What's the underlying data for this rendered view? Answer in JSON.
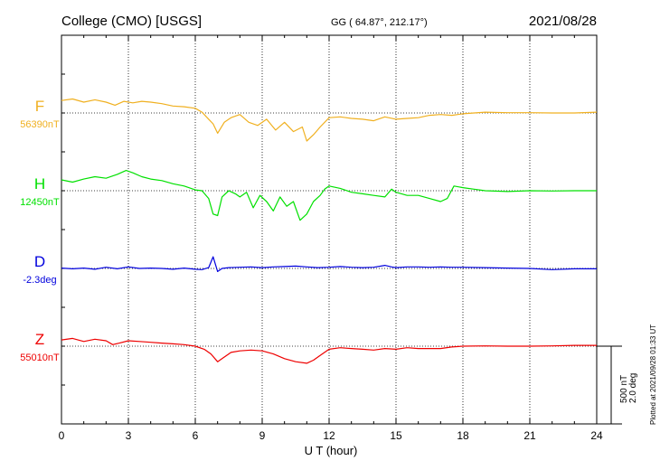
{
  "header": {
    "title": "College (CMO)  [USGS]",
    "coords": "GG ( 64.87°, 212.17°)",
    "date": "2021/08/28"
  },
  "footer": {
    "plotted": "Plotted at 2021/09/28 01:33 UT",
    "scale_nt": "500 nT",
    "scale_deg": "2.0 deg"
  },
  "colors": {
    "F": "#f0b020",
    "H": "#00e000",
    "D": "#0000dd",
    "Z": "#ee0000"
  },
  "chart_data": {
    "type": "line",
    "title": "College (CMO)  [USGS]",
    "xlabel": "U T (hour)",
    "xlim": [
      0,
      24
    ],
    "xticks": [
      0,
      3,
      6,
      9,
      12,
      15,
      18,
      21,
      24
    ],
    "grid": true,
    "scale_bar": {
      "label_top": "500 nT",
      "label_bottom": "2.0 deg",
      "value_nt": 500,
      "value_deg": 2.0
    },
    "series": [
      {
        "name": "F",
        "baseline_label": "56390nT",
        "baseline": 56390,
        "unit": "nT",
        "x": [
          0,
          0.5,
          1,
          1.5,
          2,
          2.4,
          2.8,
          3.2,
          3.6,
          4,
          4.5,
          5,
          5.5,
          6,
          6.3,
          6.6,
          6.8,
          7,
          7.3,
          7.6,
          8,
          8.4,
          8.8,
          9.2,
          9.6,
          10,
          10.4,
          10.8,
          11,
          11.3,
          11.6,
          12,
          12.5,
          13,
          13.5,
          14,
          14.5,
          15,
          15.5,
          16,
          16.5,
          17,
          17.5,
          18,
          18.5,
          19,
          20,
          21,
          22,
          23,
          24
        ],
        "values": [
          56470,
          56480,
          56460,
          56475,
          56460,
          56440,
          56465,
          56455,
          56465,
          56460,
          56450,
          56435,
          56430,
          56420,
          56395,
          56350,
          56320,
          56260,
          56330,
          56360,
          56380,
          56330,
          56310,
          56350,
          56280,
          56330,
          56270,
          56300,
          56210,
          56250,
          56300,
          56360,
          56365,
          56355,
          56350,
          56340,
          56365,
          56350,
          56355,
          56360,
          56375,
          56380,
          56375,
          56385,
          56390,
          56395,
          56392,
          56392,
          56390,
          56390,
          56395
        ]
      },
      {
        "name": "H",
        "baseline_label": "12450nT",
        "baseline": 12450,
        "unit": "nT",
        "x": [
          0,
          0.5,
          1,
          1.5,
          2,
          2.5,
          2.9,
          3.2,
          3.6,
          4,
          4.5,
          5,
          5.5,
          6,
          6.3,
          6.6,
          6.8,
          7,
          7.2,
          7.5,
          7.8,
          8,
          8.3,
          8.6,
          8.9,
          9.2,
          9.5,
          9.8,
          10.1,
          10.4,
          10.7,
          11,
          11.3,
          11.6,
          11.8,
          12,
          12.5,
          13,
          13.5,
          14,
          14.5,
          14.8,
          15,
          15.5,
          16,
          16.5,
          17,
          17.3,
          17.6,
          18,
          18.5,
          19,
          20,
          21,
          22,
          23,
          24
        ],
        "values": [
          12520,
          12505,
          12525,
          12540,
          12530,
          12555,
          12580,
          12565,
          12540,
          12525,
          12515,
          12495,
          12480,
          12455,
          12450,
          12400,
          12300,
          12290,
          12410,
          12450,
          12430,
          12410,
          12440,
          12340,
          12420,
          12380,
          12320,
          12410,
          12350,
          12380,
          12260,
          12300,
          12380,
          12420,
          12460,
          12480,
          12465,
          12440,
          12430,
          12420,
          12410,
          12460,
          12440,
          12420,
          12420,
          12400,
          12380,
          12400,
          12480,
          12470,
          12460,
          12450,
          12445,
          12450,
          12448,
          12450,
          12450
        ]
      },
      {
        "name": "D",
        "baseline_label": "-2.3deg",
        "baseline": -2.3,
        "unit": "deg",
        "x": [
          0,
          0.5,
          1,
          1.5,
          2,
          2.5,
          3,
          3.5,
          4,
          4.5,
          5,
          5.5,
          6,
          6.3,
          6.6,
          6.8,
          7,
          7.2,
          7.5,
          8,
          8.5,
          9,
          9.5,
          10,
          10.5,
          11,
          11.5,
          12,
          12.5,
          13,
          13.5,
          14,
          14.5,
          14.8,
          15,
          15.5,
          16,
          16.5,
          17,
          17.5,
          18,
          19,
          20,
          21,
          22,
          23,
          24
        ],
        "values": [
          -2.29,
          -2.31,
          -2.29,
          -2.32,
          -2.27,
          -2.31,
          -2.26,
          -2.3,
          -2.29,
          -2.3,
          -2.32,
          -2.29,
          -2.32,
          -2.33,
          -2.28,
          -2.0,
          -2.38,
          -2.3,
          -2.28,
          -2.27,
          -2.26,
          -2.28,
          -2.26,
          -2.25,
          -2.24,
          -2.26,
          -2.28,
          -2.27,
          -2.25,
          -2.27,
          -2.28,
          -2.27,
          -2.22,
          -2.26,
          -2.28,
          -2.26,
          -2.26,
          -2.27,
          -2.26,
          -2.27,
          -2.27,
          -2.28,
          -2.29,
          -2.3,
          -2.33,
          -2.31,
          -2.31
        ]
      },
      {
        "name": "Z",
        "baseline_label": "55010nT",
        "baseline": 55010,
        "unit": "nT",
        "x": [
          0,
          0.5,
          1,
          1.5,
          2,
          2.3,
          2.6,
          3,
          3.5,
          4,
          4.5,
          5,
          5.5,
          6,
          6.4,
          6.7,
          7,
          7.2,
          7.6,
          8,
          8.5,
          9,
          9.5,
          10,
          10.5,
          11,
          11.3,
          11.6,
          12,
          12.5,
          13,
          13.5,
          14,
          14.5,
          15,
          15.5,
          16,
          17,
          17.5,
          18,
          19,
          20,
          21,
          22,
          23,
          24
        ],
        "values": [
          55050,
          55060,
          55040,
          55055,
          55045,
          55020,
          55030,
          55045,
          55040,
          55035,
          55030,
          55025,
          55020,
          55010,
          54990,
          54960,
          54910,
          54930,
          54970,
          54980,
          54985,
          54980,
          54960,
          54930,
          54910,
          54900,
          54920,
          54950,
          54990,
          55000,
          54995,
          54990,
          54985,
          54995,
          54990,
          55000,
          54995,
          54995,
          55005,
          55010,
          55012,
          55010,
          55010,
          55012,
          55015,
          55015
        ]
      }
    ]
  }
}
